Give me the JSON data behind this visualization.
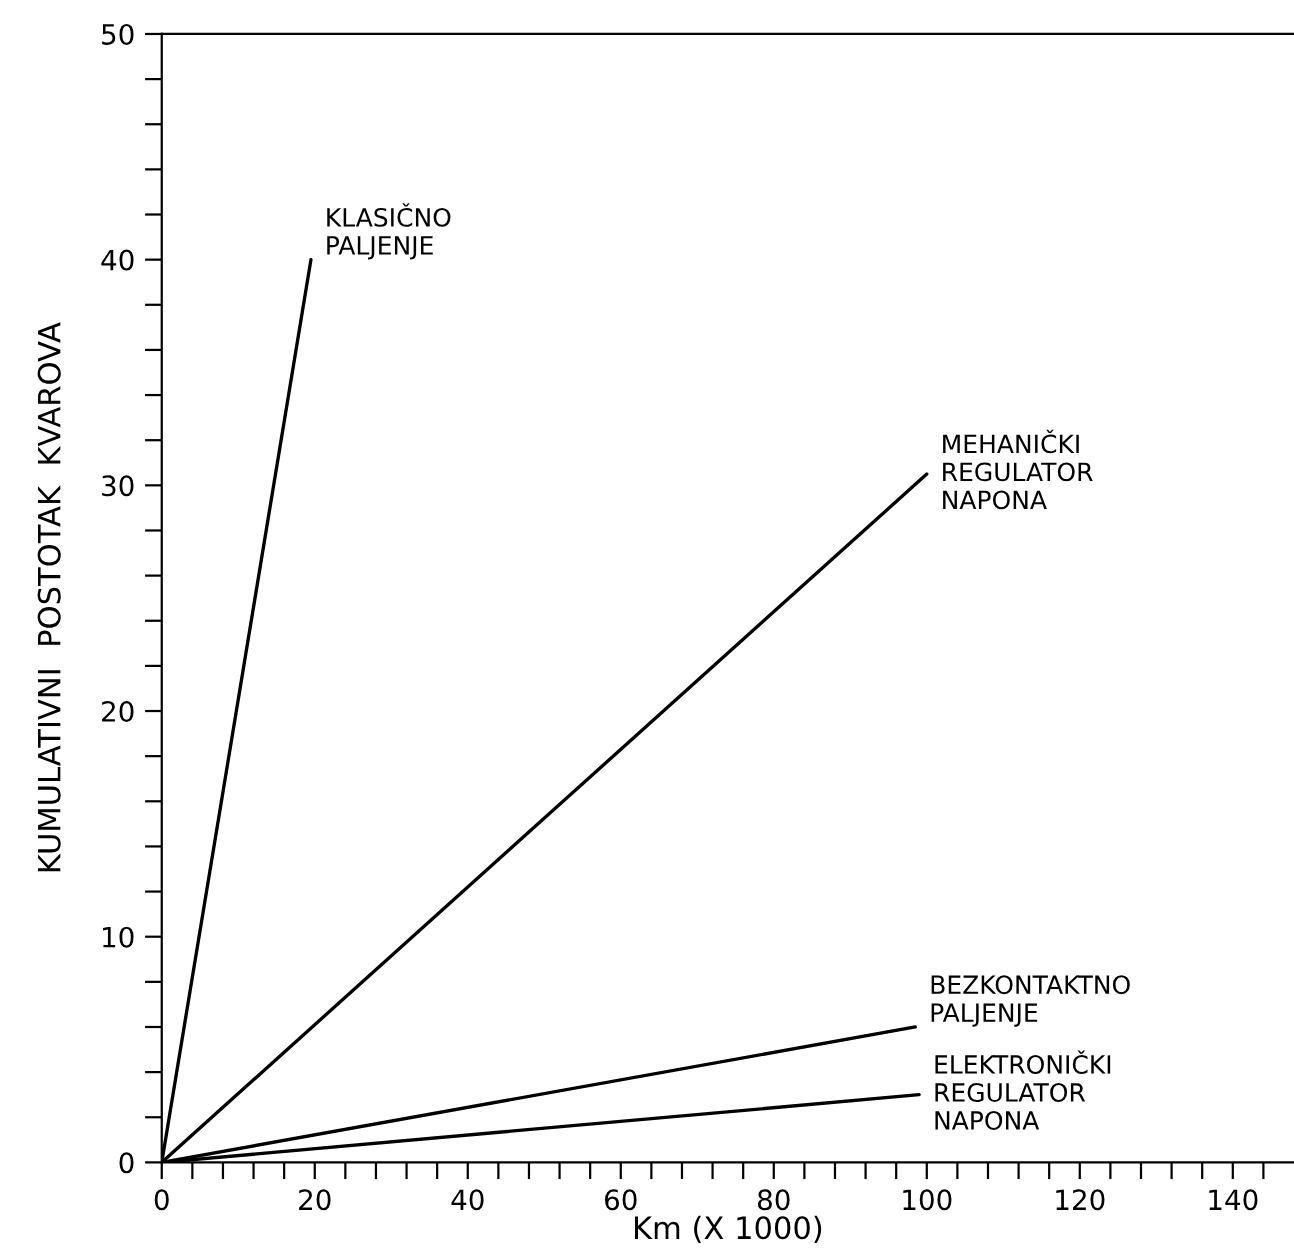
{
  "chart_data": {
    "type": "line",
    "xlabel": "Km (X 1000)",
    "ylabel": "KUMULATIVNI  POSTOTAK  KVAROVA",
    "xlim": [
      0,
      148
    ],
    "ylim": [
      0,
      50
    ],
    "xticks": [
      0,
      {
        "value": 4,
        "label": null
      },
      {
        "value": 8,
        "label": null
      },
      {
        "value": 12,
        "label": null
      },
      {
        "value": 16,
        "label": null
      },
      20,
      {
        "value": 24,
        "label": null
      },
      {
        "value": 28,
        "label": null
      },
      {
        "value": 32,
        "label": null
      },
      {
        "value": 36,
        "label": null
      },
      40,
      {
        "value": 44,
        "label": null
      },
      {
        "value": 48,
        "label": null
      },
      {
        "value": 52,
        "label": null
      },
      {
        "value": 56,
        "label": null
      },
      60,
      {
        "value": 64,
        "label": null
      },
      {
        "value": 68,
        "label": null
      },
      {
        "value": 72,
        "label": null
      },
      {
        "value": 76,
        "label": null
      },
      80,
      {
        "value": 84,
        "label": null
      },
      {
        "value": 88,
        "label": null
      },
      {
        "value": 92,
        "label": null
      },
      {
        "value": 96,
        "label": null
      },
      100,
      {
        "value": 104,
        "label": null
      },
      {
        "value": 108,
        "label": null
      },
      {
        "value": 112,
        "label": null
      },
      {
        "value": 116,
        "label": null
      },
      120,
      {
        "value": 124,
        "label": null
      },
      {
        "value": 128,
        "label": null
      },
      {
        "value": 132,
        "label": null
      },
      {
        "value": 136,
        "label": null
      },
      140,
      {
        "value": 144,
        "label": null
      }
    ],
    "yticks": [
      0,
      {
        "value": 2,
        "label": null
      },
      {
        "value": 4,
        "label": null
      },
      {
        "value": 6,
        "label": null
      },
      {
        "value": 8,
        "label": null
      },
      10,
      {
        "value": 12,
        "label": null
      },
      {
        "value": 14,
        "label": null
      },
      {
        "value": 16,
        "label": null
      },
      {
        "value": 18,
        "label": null
      },
      20,
      {
        "value": 22,
        "label": null
      },
      {
        "value": 24,
        "label": null
      },
      {
        "value": 26,
        "label": null
      },
      {
        "value": 28,
        "label": null
      },
      30,
      {
        "value": 32,
        "label": null
      },
      {
        "value": 34,
        "label": null
      },
      {
        "value": 36,
        "label": null
      },
      {
        "value": 38,
        "label": null
      },
      40,
      {
        "value": 42,
        "label": null
      },
      {
        "value": 44,
        "label": null
      },
      {
        "value": 46,
        "label": null
      },
      {
        "value": 48,
        "label": null
      },
      50
    ],
    "grid": false,
    "legend": false,
    "marker": "none",
    "line_style": "solid",
    "series": [
      {
        "name": "KLASIČNO\nPALJENJE",
        "color": "#000000",
        "x": [
          0,
          19.5
        ],
        "values": [
          0,
          40
        ]
      },
      {
        "name": "MEHANIČKI\nREGULATOR\nNAPONA",
        "color": "#000000",
        "x": [
          0,
          100
        ],
        "values": [
          0,
          30.5
        ]
      },
      {
        "name": "BEZKONTAKTNO\nPALJENJE",
        "color": "#000000",
        "x": [
          0,
          98.5
        ],
        "values": [
          0,
          6
        ]
      },
      {
        "name": "ELEKTRONIČKI\nREGULATOR\nNAPONA",
        "color": "#000000",
        "x": [
          0,
          99
        ],
        "values": [
          0,
          3
        ]
      }
    ]
  }
}
